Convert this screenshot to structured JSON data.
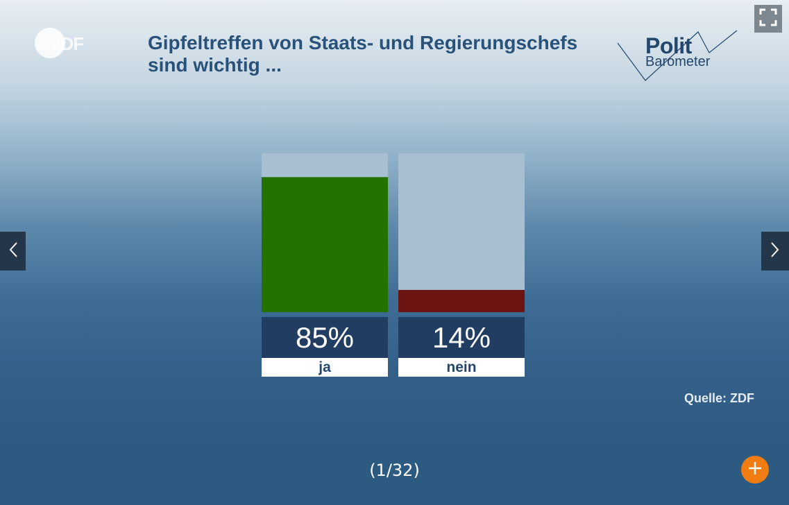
{
  "header": {
    "title": "Gipfeltreffen von Staats- und Regierungschefs sind wichtig ...",
    "zdf_logo_text": "2DF",
    "politbarometer": {
      "line1": "Polit",
      "line2": "Barometer"
    }
  },
  "controls": {
    "fullscreen_icon": "fullscreen-icon",
    "prev_icon": "chevron-left-icon",
    "next_icon": "chevron-right-icon",
    "add_icon": "plus-icon"
  },
  "source": "Quelle: ZDF",
  "counter": "(1/32)",
  "colors": {
    "ja": "#237200",
    "nein": "#6b1412",
    "bar_background": "#a7bfd0",
    "label_background": "#213d62",
    "accent": "#f07c12"
  },
  "chart_data": {
    "type": "bar",
    "title": "Gipfeltreffen von Staats- und Regierungschefs sind wichtig ...",
    "categories": [
      "ja",
      "nein"
    ],
    "values": [
      85,
      14
    ],
    "value_labels": [
      "85%",
      "14%"
    ],
    "ylim": [
      0,
      100
    ],
    "colors": [
      "#237200",
      "#6b1412"
    ],
    "grid": false,
    "legend": "none"
  }
}
